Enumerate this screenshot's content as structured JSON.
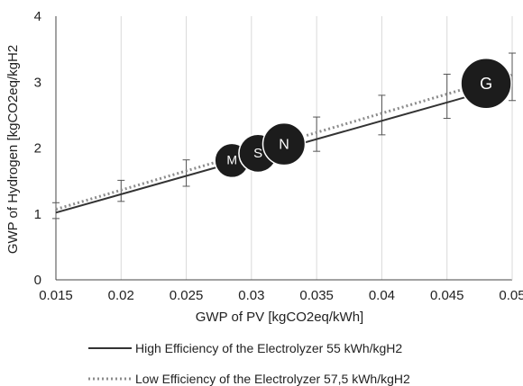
{
  "chart_data": {
    "type": "line",
    "xlabel": "GWP of PV [kgCO2eq/kWh]",
    "ylabel": "GWP of Hydrogen [kgCO2eq/kgH2",
    "xlim": [
      0.015,
      0.05
    ],
    "ylim": [
      0,
      4
    ],
    "x_ticks": [
      "0.015",
      "0.02",
      "0.025",
      "0.03",
      "0.035",
      "0.04",
      "0.045",
      "0.05"
    ],
    "y_ticks": [
      "0",
      "1",
      "2",
      "3",
      "4"
    ],
    "grid": "vertical",
    "legend_position": "bottom",
    "series": [
      {
        "name": "High Efficiency of the Electrolyzer 55 kWh/kgH2",
        "style": "solid",
        "color": "#333333",
        "x": [
          0.015,
          0.05
        ],
        "y": [
          1.02,
          2.97
        ]
      },
      {
        "name": "Low Efficiency of the Electrolyzer 57,5 kWh/kgH2",
        "style": "dotted",
        "color": "#8c8c8c",
        "x": [
          0.015,
          0.05
        ],
        "y": [
          1.07,
          3.11
        ]
      }
    ],
    "error_bars": [
      {
        "x": 0.015,
        "y": 1.05,
        "low": 0.93,
        "high": 1.17
      },
      {
        "x": 0.02,
        "y": 1.35,
        "low": 1.19,
        "high": 1.51
      },
      {
        "x": 0.025,
        "y": 1.62,
        "low": 1.42,
        "high": 1.82
      },
      {
        "x": 0.03,
        "y": 1.91,
        "low": 1.68,
        "high": 2.14
      },
      {
        "x": 0.035,
        "y": 2.21,
        "low": 1.95,
        "high": 2.47
      },
      {
        "x": 0.04,
        "y": 2.5,
        "low": 2.2,
        "high": 2.8
      },
      {
        "x": 0.045,
        "y": 2.78,
        "low": 2.45,
        "high": 3.12
      },
      {
        "x": 0.05,
        "y": 3.08,
        "low": 2.72,
        "high": 3.44
      }
    ],
    "bubbles": [
      {
        "label": "M",
        "x": 0.0285,
        "y": 1.81,
        "size": 0.5
      },
      {
        "label": "S",
        "x": 0.0305,
        "y": 1.92,
        "size": 0.62
      },
      {
        "label": "N",
        "x": 0.0325,
        "y": 2.06,
        "size": 0.75
      },
      {
        "label": "G",
        "x": 0.048,
        "y": 2.98,
        "size": 1.0
      }
    ]
  }
}
